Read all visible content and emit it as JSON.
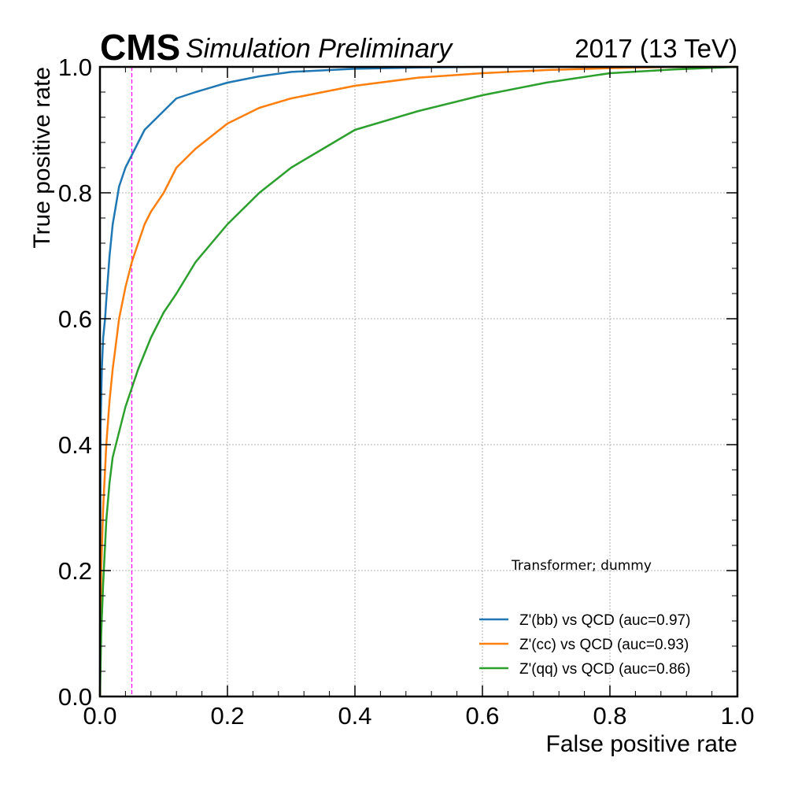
{
  "header": {
    "experiment": "CMS",
    "status": "Simulation Preliminary",
    "lumi": "2017 (13 TeV)"
  },
  "chart_data": {
    "type": "line",
    "xlabel": "False positive rate",
    "ylabel": "True positive rate",
    "xlim": [
      0.0,
      1.0
    ],
    "ylim": [
      0.0,
      1.0
    ],
    "xticks": [
      "0.0",
      "0.2",
      "0.4",
      "0.6",
      "0.8",
      "1.0"
    ],
    "yticks": [
      "0.0",
      "0.2",
      "0.4",
      "0.6",
      "0.8",
      "1.0"
    ],
    "grid": true,
    "legend_title": "Transformer; dummy",
    "legend_position": "lower-right",
    "reference_line": {
      "x": 0.05,
      "color": "#ff00ff",
      "style": "dashed"
    },
    "series": [
      {
        "name": "Z'(bb) vs QCD (auc=0.97)",
        "color": "#1f77b4",
        "x": [
          0.0,
          0.001,
          0.003,
          0.005,
          0.008,
          0.01,
          0.015,
          0.02,
          0.025,
          0.03,
          0.04,
          0.05,
          0.06,
          0.07,
          0.08,
          0.1,
          0.12,
          0.15,
          0.2,
          0.25,
          0.3,
          0.4,
          0.5,
          0.6,
          0.8,
          1.0
        ],
        "y": [
          0.0,
          0.43,
          0.52,
          0.57,
          0.6,
          0.63,
          0.7,
          0.75,
          0.78,
          0.81,
          0.84,
          0.86,
          0.88,
          0.9,
          0.91,
          0.93,
          0.95,
          0.96,
          0.975,
          0.985,
          0.992,
          0.997,
          0.999,
          1.0,
          1.0,
          1.0
        ]
      },
      {
        "name": "Z'(cc) vs QCD (auc=0.93)",
        "color": "#ff7f0e",
        "x": [
          0.0,
          0.002,
          0.005,
          0.01,
          0.015,
          0.02,
          0.025,
          0.03,
          0.04,
          0.05,
          0.06,
          0.07,
          0.08,
          0.1,
          0.12,
          0.15,
          0.2,
          0.25,
          0.3,
          0.4,
          0.5,
          0.6,
          0.7,
          0.8,
          0.9,
          1.0
        ],
        "y": [
          0.0,
          0.2,
          0.3,
          0.4,
          0.47,
          0.52,
          0.56,
          0.6,
          0.65,
          0.69,
          0.72,
          0.75,
          0.77,
          0.8,
          0.84,
          0.87,
          0.91,
          0.935,
          0.95,
          0.97,
          0.983,
          0.99,
          0.995,
          0.998,
          1.0,
          1.0
        ]
      },
      {
        "name": "Z'(qq) vs QCD (auc=0.86)",
        "color": "#2ca02c",
        "x": [
          0.0,
          0.002,
          0.005,
          0.01,
          0.015,
          0.02,
          0.03,
          0.04,
          0.05,
          0.06,
          0.08,
          0.1,
          0.12,
          0.15,
          0.2,
          0.25,
          0.3,
          0.35,
          0.4,
          0.5,
          0.6,
          0.7,
          0.8,
          0.9,
          1.0
        ],
        "y": [
          0.0,
          0.1,
          0.18,
          0.28,
          0.34,
          0.38,
          0.42,
          0.46,
          0.49,
          0.52,
          0.57,
          0.61,
          0.64,
          0.69,
          0.75,
          0.8,
          0.84,
          0.87,
          0.9,
          0.93,
          0.955,
          0.975,
          0.99,
          0.996,
          1.0
        ]
      }
    ]
  }
}
